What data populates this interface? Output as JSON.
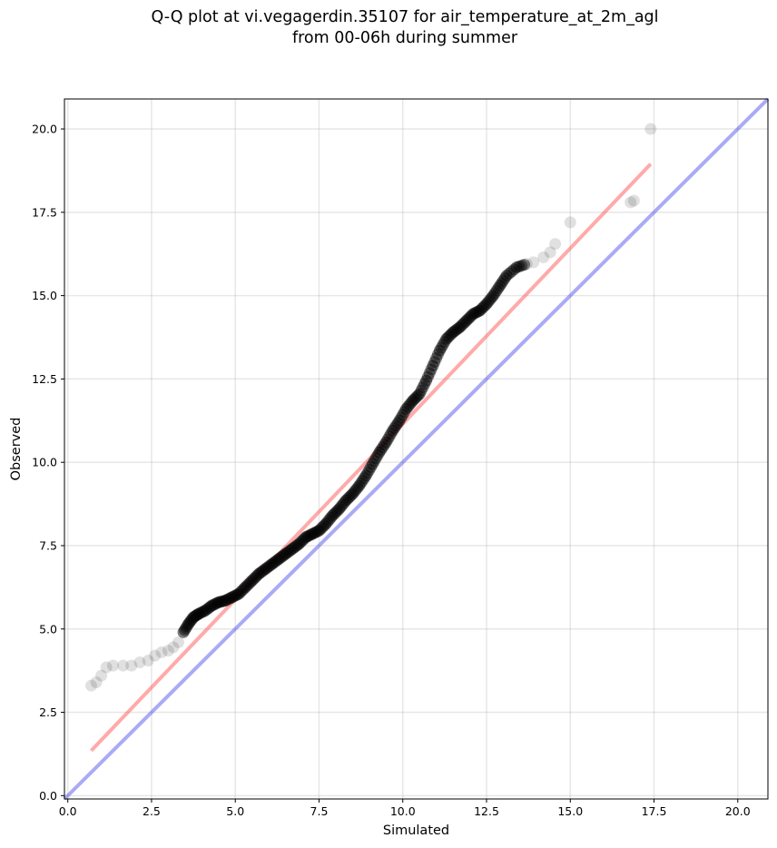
{
  "chart_data": {
    "type": "scatter",
    "title": "Q-Q plot at vi.vegagerdin.35107 for air_temperature_at_2m_agl",
    "subtitle": "from 00-06h during summer",
    "xlabel": "Simulated",
    "ylabel": "Observed",
    "xlim": [
      -0.1,
      20.9
    ],
    "ylim": [
      -0.1,
      20.9
    ],
    "xticks": [
      "0.0",
      "2.5",
      "5.0",
      "7.5",
      "10.0",
      "12.5",
      "15.0",
      "17.5",
      "20.0"
    ],
    "yticks": [
      "0.0",
      "2.5",
      "5.0",
      "7.5",
      "10.0",
      "12.5",
      "15.0",
      "17.5",
      "20.0"
    ],
    "grid": true,
    "colors": {
      "points": "#000000",
      "fit_line": "#ff5555",
      "identity_line": "#5555ee"
    },
    "fit_line": {
      "x": [
        0.7,
        17.4
      ],
      "y": [
        1.35,
        18.95
      ]
    },
    "identity_line": {
      "x": [
        -0.1,
        20.9
      ],
      "y": [
        -0.1,
        20.9
      ]
    },
    "points": {
      "x": [
        0.7,
        0.85,
        1.0,
        1.15,
        1.35,
        1.65,
        1.9,
        2.15,
        2.4,
        2.6,
        2.8,
        3.0,
        3.15,
        3.3,
        3.45,
        3.6,
        3.75,
        3.9,
        4.1,
        4.3,
        4.5,
        4.7,
        4.9,
        5.1,
        5.3,
        5.5,
        5.7,
        5.9,
        6.1,
        6.3,
        6.5,
        6.7,
        6.9,
        7.1,
        7.3,
        7.5,
        7.7,
        7.9,
        8.1,
        8.3,
        8.5,
        8.7,
        8.9,
        9.1,
        9.3,
        9.5,
        9.7,
        9.9,
        10.1,
        10.3,
        10.5,
        10.7,
        10.9,
        11.1,
        11.3,
        11.5,
        11.7,
        11.9,
        12.1,
        12.3,
        12.5,
        12.7,
        12.9,
        13.1,
        13.4,
        13.7,
        13.9,
        14.2,
        14.4,
        14.55,
        15.0,
        16.8,
        16.9,
        17.4
      ],
      "y": [
        3.3,
        3.4,
        3.6,
        3.85,
        3.9,
        3.9,
        3.9,
        4.0,
        4.05,
        4.2,
        4.3,
        4.35,
        4.45,
        4.6,
        4.9,
        5.15,
        5.35,
        5.45,
        5.55,
        5.7,
        5.8,
        5.85,
        5.95,
        6.05,
        6.25,
        6.45,
        6.65,
        6.8,
        6.95,
        7.1,
        7.25,
        7.4,
        7.55,
        7.75,
        7.85,
        7.95,
        8.15,
        8.4,
        8.6,
        8.85,
        9.05,
        9.3,
        9.6,
        9.95,
        10.3,
        10.6,
        10.95,
        11.25,
        11.6,
        11.85,
        12.05,
        12.45,
        12.9,
        13.35,
        13.7,
        13.9,
        14.05,
        14.25,
        14.45,
        14.55,
        14.75,
        15.0,
        15.3,
        15.6,
        15.85,
        15.95,
        16.0,
        16.15,
        16.3,
        16.55,
        17.2,
        17.8,
        17.85,
        20.0
      ]
    }
  }
}
